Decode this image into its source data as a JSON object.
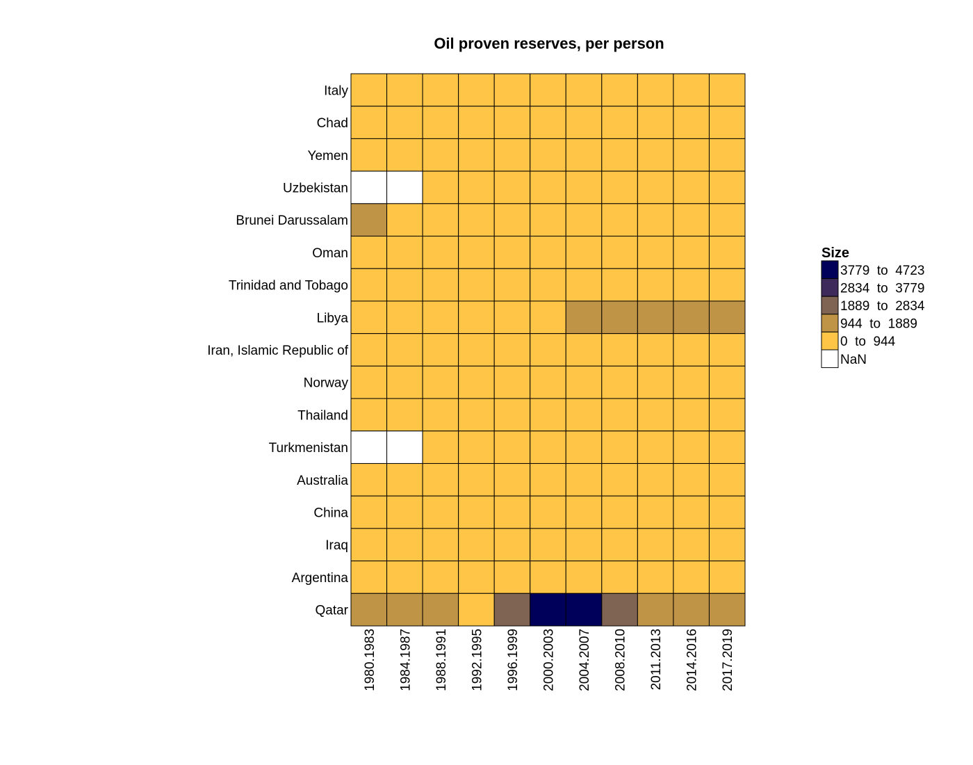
{
  "chart_data": {
    "type": "heatmap",
    "title": "Oil proven reserves, per person",
    "x_categories": [
      "1980.1983",
      "1984.1987",
      "1988.1991",
      "1992.1995",
      "1996.1999",
      "2000.2003",
      "2004.2007",
      "2008.2010",
      "2011.2013",
      "2014.2016",
      "2017.2019"
    ],
    "y_categories": [
      "Italy",
      "Chad",
      "Yemen",
      "Uzbekistan",
      "Brunei Darussalam",
      "Oman",
      "Trinidad and Tobago",
      "Libya",
      "Iran, Islamic Republic of",
      "Norway",
      "Thailand",
      "Turkmenistan",
      "Australia",
      "China",
      "Iraq",
      "Argentina",
      "Qatar"
    ],
    "bin_index_note_values": "each cell gives the legend bin index: 0 = 0 to 944, 1 = 944 to 1889, 2 = 1889 to 2834, 3 = 2834 to 3779, 4 = 3779 to 4723, null = NaN",
    "cells": [
      [
        0,
        0,
        0,
        0,
        0,
        0,
        0,
        0,
        0,
        0,
        0
      ],
      [
        0,
        0,
        0,
        0,
        0,
        0,
        0,
        0,
        0,
        0,
        0
      ],
      [
        0,
        0,
        0,
        0,
        0,
        0,
        0,
        0,
        0,
        0,
        0
      ],
      [
        null,
        null,
        0,
        0,
        0,
        0,
        0,
        0,
        0,
        0,
        0
      ],
      [
        1,
        0,
        0,
        0,
        0,
        0,
        0,
        0,
        0,
        0,
        0
      ],
      [
        0,
        0,
        0,
        0,
        0,
        0,
        0,
        0,
        0,
        0,
        0
      ],
      [
        0,
        0,
        0,
        0,
        0,
        0,
        0,
        0,
        0,
        0,
        0
      ],
      [
        0,
        0,
        0,
        0,
        0,
        0,
        1,
        1,
        1,
        1,
        1
      ],
      [
        0,
        0,
        0,
        0,
        0,
        0,
        0,
        0,
        0,
        0,
        0
      ],
      [
        0,
        0,
        0,
        0,
        0,
        0,
        0,
        0,
        0,
        0,
        0
      ],
      [
        0,
        0,
        0,
        0,
        0,
        0,
        0,
        0,
        0,
        0,
        0
      ],
      [
        null,
        null,
        0,
        0,
        0,
        0,
        0,
        0,
        0,
        0,
        0
      ],
      [
        0,
        0,
        0,
        0,
        0,
        0,
        0,
        0,
        0,
        0,
        0
      ],
      [
        0,
        0,
        0,
        0,
        0,
        0,
        0,
        0,
        0,
        0,
        0
      ],
      [
        0,
        0,
        0,
        0,
        0,
        0,
        0,
        0,
        0,
        0,
        0
      ],
      [
        0,
        0,
        0,
        0,
        0,
        0,
        0,
        0,
        0,
        0,
        0
      ],
      [
        1,
        1,
        1,
        0,
        2,
        4,
        4,
        2,
        1,
        1,
        1
      ]
    ],
    "legend": {
      "title": "Size",
      "placement": "right",
      "entries": [
        {
          "label": "3779  to  4723",
          "color": "#00005a",
          "bin": 4
        },
        {
          "label": "2834  to  3779",
          "color": "#3e2a5b",
          "bin": 3
        },
        {
          "label": "1889  to  2834",
          "color": "#7f6353",
          "bin": 2
        },
        {
          "label": "944  to  1889",
          "color": "#c09446",
          "bin": 1
        },
        {
          "label": "0  to  944",
          "color": "#ffc546",
          "bin": 0
        },
        {
          "label": "NaN",
          "color": "#ffffff",
          "bin": null
        }
      ]
    }
  }
}
